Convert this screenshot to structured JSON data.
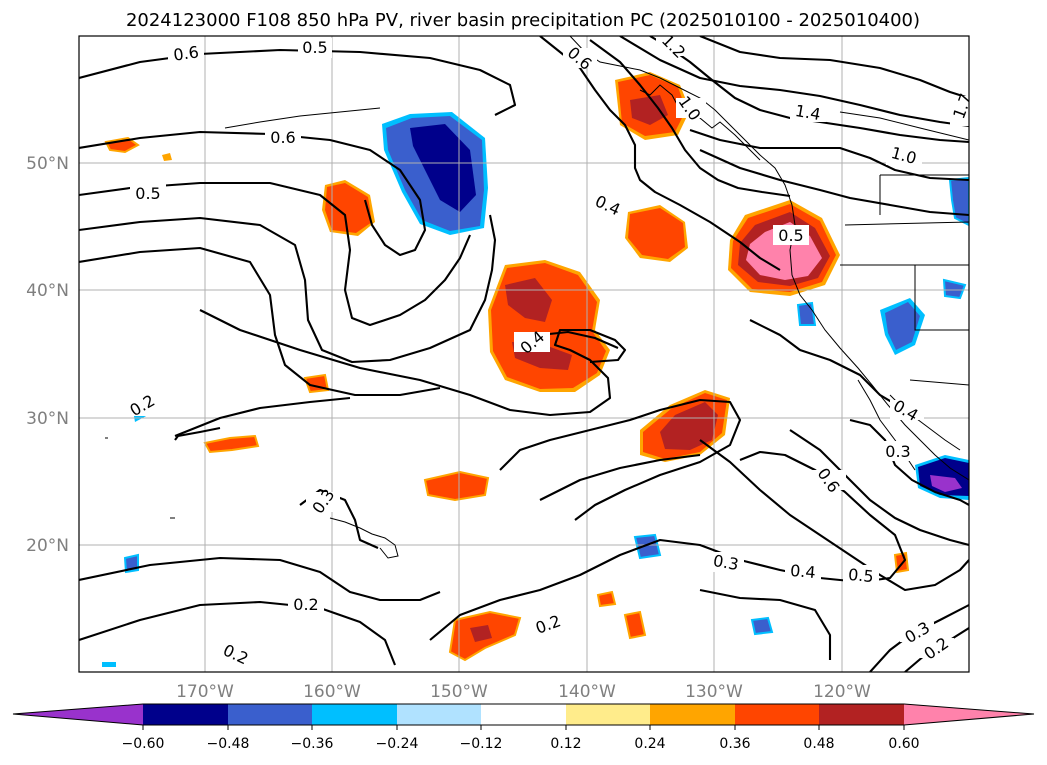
{
  "title": "2024123000 F108 850 hPa PV, river basin precipitation PC (2025010100 - 2025010400)",
  "lat_labels": [
    "50°N",
    "40°N",
    "30°N",
    "20°N"
  ],
  "lon_labels": [
    "170°W",
    "160°W",
    "150°W",
    "140°W",
    "130°W",
    "120°W"
  ],
  "contour_labels": [
    "0.6",
    "0.5",
    "0.6",
    "0.5",
    "1.2",
    "1.4",
    "1.0",
    "1.0",
    "0.6",
    "0.4",
    "0.5",
    "0.4",
    "0.2",
    "0.3",
    "0.2",
    "0.2",
    "0.2",
    "0.3",
    "0.4",
    "0.5",
    "0.6",
    "0.4",
    "0.3",
    "0.3",
    "0.2",
    "1.7"
  ],
  "colorbar": {
    "ticks": [
      "−0.60",
      "−0.48",
      "−0.36",
      "−0.24",
      "−0.12",
      "0.12",
      "0.24",
      "0.36",
      "0.48",
      "0.60"
    ],
    "colors": [
      "#9932cc",
      "#00008b",
      "#3a5fcd",
      "#00bfff",
      "#b0e2ff",
      "#ffffff",
      "#ffec8b",
      "#ffa500",
      "#ff4500",
      "#b22222",
      "#ff82ab"
    ]
  }
}
